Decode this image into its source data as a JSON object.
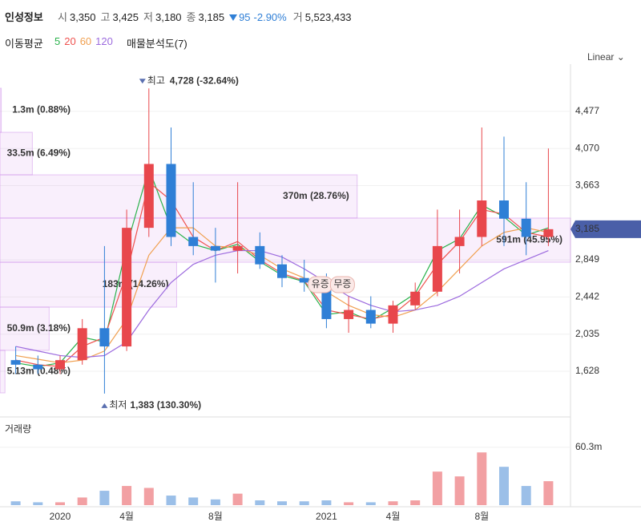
{
  "header": {
    "name": "인성정보",
    "items": [
      {
        "key": "시",
        "val": "3,350"
      },
      {
        "key": "고",
        "val": "3,425"
      },
      {
        "key": "저",
        "val": "3,180"
      },
      {
        "key": "종",
        "val": "3,185"
      }
    ],
    "change": "95",
    "change_pct": "-2.90%",
    "vol_key": "거",
    "vol_val": "5,523,433",
    "ma_title": "이동평균",
    "profile_title": "매물분석도(7)",
    "scale": "Linear"
  },
  "chart_data": {
    "type": "candlestick",
    "categories": [
      null,
      null,
      "2020",
      null,
      null,
      "4월",
      null,
      null,
      null,
      "8월",
      null,
      null,
      null,
      null,
      "2021",
      null,
      null,
      "4월",
      null,
      null,
      null,
      "8월",
      null,
      null,
      null
    ],
    "open": [
      1750,
      1700,
      1650,
      1750,
      2100,
      1900,
      3200,
      3900,
      3100,
      3000,
      2950,
      3000,
      2800,
      2650,
      2600,
      2200,
      2300,
      2150,
      2350,
      2500,
      3000,
      3100,
      3500,
      3300,
      3100
    ],
    "high": [
      1900,
      1800,
      1800,
      2200,
      3000,
      3400,
      4728,
      4300,
      3700,
      3200,
      3700,
      3150,
      2900,
      2850,
      2700,
      2450,
      2450,
      2400,
      2600,
      3400,
      3400,
      4300,
      4200,
      3700,
      4070
    ],
    "low": [
      1600,
      1600,
      1600,
      1700,
      1383,
      1850,
      3100,
      3000,
      2900,
      2600,
      2700,
      2750,
      2550,
      2500,
      2100,
      2050,
      2100,
      2050,
      2300,
      2450,
      2700,
      3000,
      3000,
      2900,
      3000
    ],
    "close": [
      1700,
      1650,
      1750,
      2100,
      1900,
      3200,
      3900,
      3100,
      3000,
      2950,
      3000,
      2800,
      2650,
      2600,
      2200,
      2300,
      2150,
      2350,
      2500,
      3000,
      3100,
      3500,
      3300,
      3100,
      3185
    ],
    "up_color": "#e8474c",
    "down_color": "#2f7fd6",
    "moving_averages": [
      {
        "name": "5",
        "color": "#2bb24c",
        "values": [
          1720,
          1680,
          1720,
          2000,
          1950,
          3000,
          3850,
          3200,
          3020,
          2950,
          3020,
          2830,
          2680,
          2610,
          2250,
          2280,
          2180,
          2320,
          2480,
          2950,
          3080,
          3450,
          3320,
          3120,
          3200
        ]
      },
      {
        "name": "20",
        "color": "#ef5350",
        "values": [
          1750,
          1700,
          1680,
          1900,
          2000,
          2700,
          3700,
          3500,
          3100,
          2950,
          3050,
          2850,
          2700,
          2620,
          2300,
          2250,
          2200,
          2250,
          2450,
          2800,
          3050,
          3400,
          3350,
          3150,
          3100
        ]
      },
      {
        "name": "60",
        "color": "#f0a050",
        "values": [
          1800,
          1760,
          1720,
          1750,
          1850,
          2200,
          2900,
          3200,
          3200,
          3000,
          2980,
          2900,
          2750,
          2650,
          2500,
          2350,
          2250,
          2220,
          2300,
          2500,
          2750,
          3000,
          3150,
          3200,
          3150
        ]
      },
      {
        "name": "120",
        "color": "#9c6ade",
        "values": [
          1900,
          1850,
          1800,
          1780,
          1800,
          1950,
          2300,
          2600,
          2800,
          2900,
          2950,
          2950,
          2880,
          2750,
          2600,
          2450,
          2350,
          2280,
          2300,
          2350,
          2450,
          2600,
          2750,
          2850,
          2950
        ]
      }
    ],
    "ylim": [
      1303,
      4906
    ],
    "yticks": [
      {
        "value": 1628,
        "label": "1,628"
      },
      {
        "value": 2035,
        "label": "2,035"
      },
      {
        "value": 2442,
        "label": "2,442"
      },
      {
        "value": 2849,
        "label": "2,849"
      },
      {
        "value": 3663,
        "label": "3,663"
      },
      {
        "value": 4070,
        "label": "4,070"
      },
      {
        "value": 4477,
        "label": "4,477"
      }
    ],
    "last_price": {
      "value": 3185,
      "label": "3,185"
    },
    "high_note": {
      "prefix": "최고",
      "value": 4728,
      "label": "4,728 (-32.64%)"
    },
    "low_note": {
      "prefix": "최저",
      "value": 1383,
      "label": "1,383 (130.30%)"
    },
    "events": [
      {
        "index": 13,
        "label": "유증"
      },
      {
        "index": 14,
        "label": "무증"
      }
    ],
    "volume_profile": [
      {
        "low": 4247,
        "high": 4730,
        "volume": 1300000,
        "label": "1.3m (0.88%)"
      },
      {
        "low": 3781,
        "high": 4247,
        "volume": 33500000,
        "label": "33.5m (6.49%)"
      },
      {
        "low": 3307,
        "high": 3781,
        "volume": 370000000,
        "label": "370m (28.76%)"
      },
      {
        "low": 2823,
        "high": 3307,
        "volume": 591000000,
        "label": "591m (45.95%)"
      },
      {
        "low": 2331,
        "high": 2823,
        "volume": 183000000,
        "label": "183m (14.26%)"
      },
      {
        "low": 1857,
        "high": 2331,
        "volume": 50900000,
        "label": "50.9m (3.18%)"
      },
      {
        "low": 1391,
        "high": 1857,
        "volume": 5130000,
        "label": "5.13m (0.48%)"
      }
    ],
    "volume": {
      "title": "거래량",
      "values": [
        4000000,
        3000000,
        3000000,
        8000000,
        15000000,
        20000000,
        18000000,
        10000000,
        8000000,
        6000000,
        12000000,
        5000000,
        4000000,
        4000000,
        5000000,
        3000000,
        3000000,
        4000000,
        5000000,
        35000000,
        30000000,
        55000000,
        40000000,
        20000000,
        25000000
      ],
      "ylim": [
        0,
        92000000
      ],
      "yticks": [
        {
          "value": 60300000,
          "label": "60.3m"
        }
      ]
    }
  }
}
